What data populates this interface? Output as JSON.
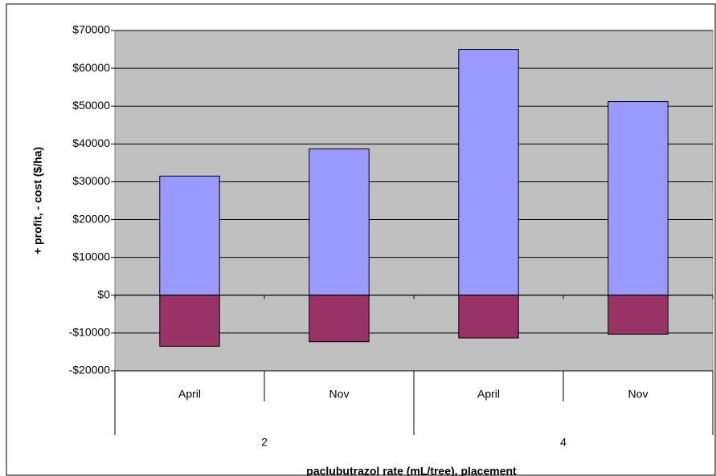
{
  "chart_data": {
    "type": "bar",
    "stacked": true,
    "x_label": "paclubutrazol rate (mL/tree), placement",
    "y_label": "+ profit, - cost ($/ha)",
    "categories": [
      "April",
      "Nov",
      "April",
      "Nov"
    ],
    "groups": [
      "2",
      "4"
    ],
    "series": [
      {
        "color": "#9999ff",
        "values": [
          31500,
          38700,
          65000,
          51200
        ]
      },
      {
        "color": "#993366",
        "values": [
          -13500,
          -12300,
          -11300,
          -10300
        ]
      }
    ],
    "ylim": [
      -20000,
      70000
    ],
    "yticks": [
      {
        "value": -20000,
        "label": "-$20000"
      },
      {
        "value": -10000,
        "label": "-$10000"
      },
      {
        "value": 0,
        "label": "$0"
      },
      {
        "value": 10000,
        "label": "$10000"
      },
      {
        "value": 20000,
        "label": "$20000"
      },
      {
        "value": 30000,
        "label": "$30000"
      },
      {
        "value": 40000,
        "label": "$40000"
      },
      {
        "value": 50000,
        "label": "$50000"
      },
      {
        "value": 60000,
        "label": "$60000"
      },
      {
        "value": 70000,
        "label": "$70000"
      }
    ],
    "grid": true
  }
}
